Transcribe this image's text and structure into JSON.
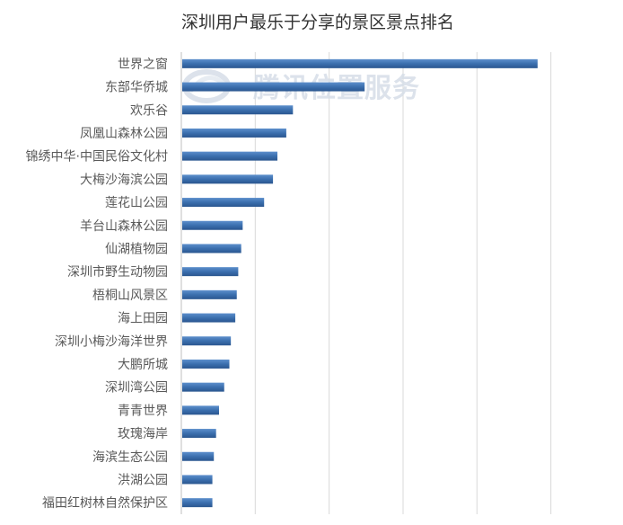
{
  "chart_data": {
    "type": "bar",
    "orientation": "horizontal",
    "title": "深圳用户最乐于分享的景区景点排名",
    "categories": [
      "世界之窗",
      "东部华侨城",
      "欢乐谷",
      "凤凰山森林公园",
      "锦绣中华·中国民俗文化村",
      "大梅沙海滨公园",
      "莲花山公园",
      "羊台山森林公园",
      "仙湖植物园",
      "深圳市野生动物园",
      "梧桐山风景区",
      "海上田园",
      "深圳小梅沙海洋世界",
      "大鹏所城",
      "深圳湾公园",
      "青青世界",
      "玫瑰海岸",
      "海滨生态公园",
      "洪湖公园",
      "福田红树林自然保护区"
    ],
    "values": [
      4.82,
      2.48,
      1.51,
      1.42,
      1.3,
      1.24,
      1.12,
      0.83,
      0.81,
      0.77,
      0.75,
      0.73,
      0.67,
      0.65,
      0.58,
      0.51,
      0.47,
      0.44,
      0.42,
      0.42
    ],
    "xlim": [
      0,
      6
    ],
    "xlabel": "",
    "ylabel": "",
    "x_tick_labels_shown": false,
    "grid": true,
    "bar_color": "#3b6fae"
  },
  "watermark": {
    "text": "腾讯位置服务",
    "logo_icon": "tencent-map-logo-icon"
  }
}
